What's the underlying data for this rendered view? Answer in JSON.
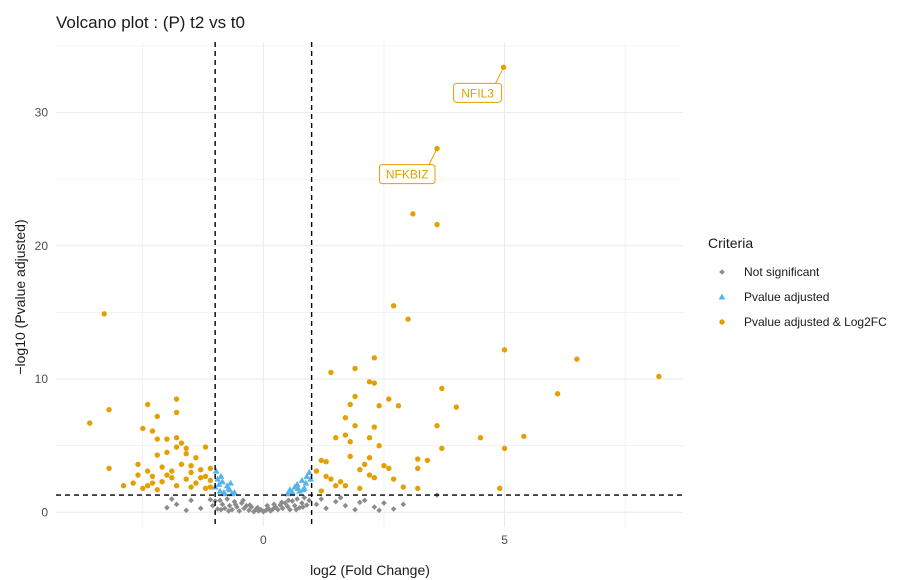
{
  "chart_data": {
    "type": "scatter",
    "title": "Volcano plot : (P) t2 vs t0",
    "xlabel": "log2 (Fold Change)",
    "ylabel": "−log10 (Pvalue adjusted)",
    "xlim": [
      -4.3,
      8.7
    ],
    "ylim": [
      -1.1,
      35.3
    ],
    "x_ticks": [
      0,
      5
    ],
    "x_tick_labels": [
      "0",
      "5"
    ],
    "y_ticks": [
      0,
      10,
      20,
      30
    ],
    "y_tick_labels": [
      "0",
      "10",
      "20",
      "30"
    ],
    "grid": true,
    "thresholds": {
      "log2fc": [
        -1,
        1
      ],
      "neg_log10_padj": 1.3
    },
    "legend": {
      "title": "Criteria",
      "position": "right",
      "entries": [
        {
          "label": "Not significant",
          "color": "#8c8c8c",
          "shape": "diamond"
        },
        {
          "label": "Pvalue adjusted",
          "color": "#56b4e9",
          "shape": "triangle"
        },
        {
          "label": "Pvalue adjusted & Log2FC",
          "color": "#e69f00",
          "shape": "circle"
        }
      ]
    },
    "annotations": [
      {
        "label": "NFIL3",
        "x": 4.98,
        "y": 33.4
      },
      {
        "label": "NFKBIZ",
        "x": 3.6,
        "y": 27.3
      }
    ],
    "series": [
      {
        "name": "Not significant",
        "color": "#8c8c8c",
        "shape": "diamond",
        "points": [
          [
            -0.9,
            0.9
          ],
          [
            -0.85,
            0.6
          ],
          [
            -0.8,
            0.3
          ],
          [
            -0.75,
            1.0
          ],
          [
            -0.7,
            0.5
          ],
          [
            -0.65,
            0.2
          ],
          [
            -0.6,
            0.8
          ],
          [
            -0.55,
            0.4
          ],
          [
            -0.5,
            0.1
          ],
          [
            -0.45,
            0.7
          ],
          [
            -0.4,
            0.3
          ],
          [
            -0.35,
            0.5
          ],
          [
            -0.3,
            0.15
          ],
          [
            -0.25,
            0.4
          ],
          [
            -0.2,
            0.05
          ],
          [
            -0.15,
            0.25
          ],
          [
            -0.1,
            0.1
          ],
          [
            -0.05,
            0.2
          ],
          [
            0.0,
            0.05
          ],
          [
            0.05,
            0.15
          ],
          [
            0.1,
            0.3
          ],
          [
            0.15,
            0.1
          ],
          [
            0.2,
            0.25
          ],
          [
            0.25,
            0.4
          ],
          [
            0.3,
            0.2
          ],
          [
            0.35,
            0.55
          ],
          [
            0.4,
            0.3
          ],
          [
            0.45,
            0.7
          ],
          [
            0.5,
            0.45
          ],
          [
            0.55,
            0.2
          ],
          [
            0.6,
            0.85
          ],
          [
            0.65,
            0.5
          ],
          [
            0.7,
            1.0
          ],
          [
            0.75,
            0.35
          ],
          [
            0.8,
            0.7
          ],
          [
            0.85,
            1.1
          ],
          [
            0.9,
            0.55
          ],
          [
            0.95,
            0.9
          ],
          [
            -1.0,
            0.85
          ],
          [
            -1.05,
            0.5
          ],
          [
            -1.1,
            0.95
          ],
          [
            -0.95,
            0.25
          ],
          [
            -0.88,
            0.2
          ],
          [
            -0.72,
            0.1
          ],
          [
            -0.58,
            0.6
          ],
          [
            -0.42,
            0.9
          ],
          [
            -0.28,
            0.55
          ],
          [
            -0.12,
            0.35
          ],
          [
            0.08,
            0.5
          ],
          [
            0.22,
            0.6
          ],
          [
            0.38,
            0.75
          ],
          [
            0.52,
            0.9
          ],
          [
            0.68,
            0.2
          ],
          [
            0.82,
            0.4
          ],
          [
            1.1,
            0.6
          ],
          [
            1.3,
            0.3
          ],
          [
            1.5,
            0.8
          ],
          [
            1.7,
            0.5
          ],
          [
            1.9,
            0.2
          ],
          [
            2.1,
            0.9
          ],
          [
            2.3,
            0.4
          ],
          [
            2.5,
            0.7
          ],
          [
            2.7,
            0.25
          ],
          [
            2.9,
            0.6
          ],
          [
            1.2,
            1.0
          ],
          [
            1.6,
            1.1
          ],
          [
            2.0,
            0.75
          ],
          [
            2.4,
            0.15
          ],
          [
            3.6,
            1.3
          ],
          [
            -1.5,
            0.9
          ],
          [
            -1.8,
            0.6
          ],
          [
            -2.0,
            0.35
          ],
          [
            -1.3,
            0.3
          ],
          [
            -1.6,
            0.15
          ],
          [
            -1.9,
            1.0
          ]
        ]
      },
      {
        "name": "Pvalue adjusted",
        "color": "#56b4e9",
        "shape": "triangle",
        "points": [
          [
            -0.6,
            1.5
          ],
          [
            -0.7,
            1.7
          ],
          [
            -0.75,
            2.0
          ],
          [
            -0.8,
            1.4
          ],
          [
            -0.85,
            2.3
          ],
          [
            -0.9,
            1.6
          ],
          [
            -0.95,
            2.5
          ],
          [
            -1.0,
            1.9
          ],
          [
            -0.65,
            1.4
          ],
          [
            -0.88,
            2.7
          ],
          [
            -0.98,
            3.1
          ],
          [
            -0.72,
            1.8
          ],
          [
            -0.92,
            2.1
          ],
          [
            -0.82,
            1.5
          ],
          [
            -0.68,
            2.2
          ],
          [
            0.5,
            1.4
          ],
          [
            0.55,
            1.7
          ],
          [
            0.6,
            1.5
          ],
          [
            0.65,
            1.9
          ],
          [
            0.7,
            2.1
          ],
          [
            0.75,
            1.6
          ],
          [
            0.8,
            2.4
          ],
          [
            0.85,
            1.8
          ],
          [
            0.9,
            2.7
          ],
          [
            0.95,
            3.0
          ],
          [
            0.58,
            1.5
          ],
          [
            0.72,
            1.8
          ],
          [
            0.88,
            2.2
          ],
          [
            0.98,
            2.5
          ],
          [
            0.82,
            1.7
          ]
        ]
      },
      {
        "name": "Pvalue adjusted & Log2FC",
        "color": "#e69f00",
        "shape": "circle",
        "points": [
          [
            4.98,
            33.4
          ],
          [
            3.6,
            27.3
          ],
          [
            3.1,
            22.4
          ],
          [
            3.6,
            21.6
          ],
          [
            2.7,
            15.5
          ],
          [
            3.0,
            14.5
          ],
          [
            5.0,
            12.2
          ],
          [
            6.5,
            11.5
          ],
          [
            8.2,
            10.2
          ],
          [
            1.4,
            10.5
          ],
          [
            1.9,
            10.8
          ],
          [
            2.3,
            11.6
          ],
          [
            2.2,
            9.8
          ],
          [
            2.3,
            9.7
          ],
          [
            2.6,
            8.5
          ],
          [
            2.4,
            8.0
          ],
          [
            2.8,
            8.0
          ],
          [
            3.7,
            9.3
          ],
          [
            4.0,
            7.9
          ],
          [
            6.1,
            8.9
          ],
          [
            1.9,
            8.7
          ],
          [
            1.8,
            8.1
          ],
          [
            1.7,
            7.1
          ],
          [
            1.9,
            6.5
          ],
          [
            1.7,
            5.8
          ],
          [
            1.5,
            5.6
          ],
          [
            1.8,
            5.3
          ],
          [
            2.2,
            5.6
          ],
          [
            2.3,
            6.4
          ],
          [
            2.4,
            5.0
          ],
          [
            3.6,
            6.5
          ],
          [
            4.5,
            5.6
          ],
          [
            5.4,
            5.7
          ],
          [
            5.0,
            4.8
          ],
          [
            3.7,
            4.8
          ],
          [
            3.2,
            4.0
          ],
          [
            3.4,
            3.9
          ],
          [
            3.2,
            3.3
          ],
          [
            3.2,
            1.8
          ],
          [
            4.9,
            1.8
          ],
          [
            1.2,
            3.9
          ],
          [
            1.3,
            3.8
          ],
          [
            1.1,
            3.1
          ],
          [
            1.3,
            2.7
          ],
          [
            1.4,
            2.5
          ],
          [
            1.6,
            2.3
          ],
          [
            1.7,
            2.0
          ],
          [
            2.0,
            3.2
          ],
          [
            2.1,
            3.6
          ],
          [
            2.2,
            4.1
          ],
          [
            2.5,
            3.5
          ],
          [
            2.6,
            3.3
          ],
          [
            2.3,
            2.6
          ],
          [
            2.7,
            2.5
          ],
          [
            2.9,
            1.9
          ],
          [
            2.0,
            1.8
          ],
          [
            1.5,
            2.0
          ],
          [
            1.2,
            1.6
          ],
          [
            1.8,
            4.2
          ],
          [
            2.2,
            2.8
          ],
          [
            -3.6,
            6.7
          ],
          [
            -3.3,
            14.9
          ],
          [
            -3.2,
            7.7
          ],
          [
            -3.2,
            3.3
          ],
          [
            -2.4,
            8.1
          ],
          [
            -1.8,
            8.5
          ],
          [
            -2.2,
            7.2
          ],
          [
            -1.8,
            7.5
          ],
          [
            -2.3,
            6.1
          ],
          [
            -2.5,
            6.3
          ],
          [
            -2.2,
            5.5
          ],
          [
            -2.0,
            5.5
          ],
          [
            -1.8,
            5.6
          ],
          [
            -1.7,
            5.2
          ],
          [
            -1.8,
            4.9
          ],
          [
            -1.6,
            4.8
          ],
          [
            -1.2,
            4.9
          ],
          [
            -2.0,
            4.5
          ],
          [
            -2.2,
            4.3
          ],
          [
            -1.6,
            4.4
          ],
          [
            -1.4,
            4.1
          ],
          [
            -2.6,
            3.6
          ],
          [
            -2.1,
            3.4
          ],
          [
            -1.7,
            3.6
          ],
          [
            -1.5,
            3.5
          ],
          [
            -2.4,
            3.1
          ],
          [
            -1.9,
            3.1
          ],
          [
            -1.3,
            3.2
          ],
          [
            -1.1,
            3.3
          ],
          [
            -2.6,
            2.8
          ],
          [
            -2.3,
            2.7
          ],
          [
            -2.0,
            2.8
          ],
          [
            -1.6,
            2.5
          ],
          [
            -1.3,
            2.6
          ],
          [
            -1.1,
            2.4
          ],
          [
            -2.7,
            2.2
          ],
          [
            -2.4,
            2.0
          ],
          [
            -2.1,
            2.3
          ],
          [
            -1.8,
            2.0
          ],
          [
            -1.5,
            1.9
          ],
          [
            -1.2,
            1.8
          ],
          [
            -2.9,
            2.0
          ],
          [
            -2.5,
            1.8
          ],
          [
            -2.2,
            1.7
          ],
          [
            -1.1,
            1.9
          ],
          [
            -1.4,
            2.2
          ],
          [
            -1.9,
            2.6
          ],
          [
            -1.5,
            3.0
          ],
          [
            -1.2,
            2.7
          ],
          [
            -2.3,
            2.2
          ]
        ]
      }
    ]
  }
}
